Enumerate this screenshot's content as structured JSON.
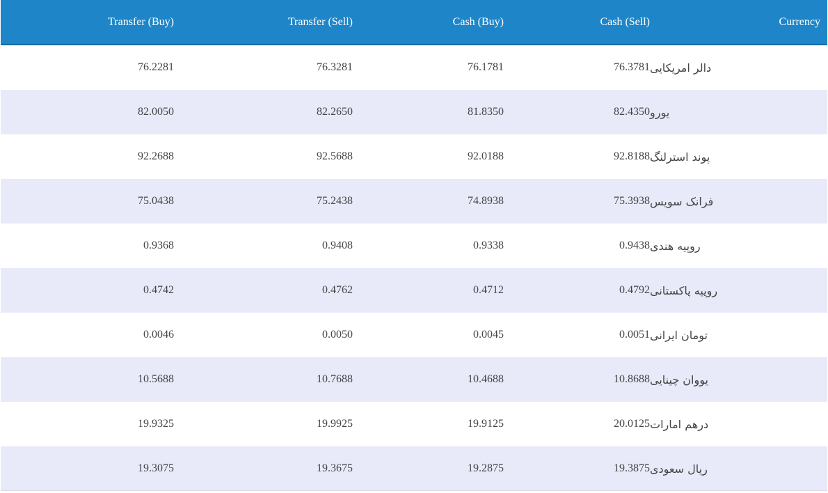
{
  "headers": {
    "transfer_buy": "Transfer (Buy)",
    "transfer_sell": "Transfer (Sell)",
    "cash_buy": "Cash (Buy)",
    "cash_sell": "Cash (Sell)",
    "currency": "Currency"
  },
  "rows": [
    {
      "transfer_buy": "76.2281",
      "transfer_sell": "76.3281",
      "cash_buy": "76.1781",
      "cash_sell": "76.3781",
      "currency": "دالر امریکایی"
    },
    {
      "transfer_buy": "82.0050",
      "transfer_sell": "82.2650",
      "cash_buy": "81.8350",
      "cash_sell": "82.4350",
      "currency": "یورو"
    },
    {
      "transfer_buy": "92.2688",
      "transfer_sell": "92.5688",
      "cash_buy": "92.0188",
      "cash_sell": "92.8188",
      "currency": "پوند استرلنگ"
    },
    {
      "transfer_buy": "75.0438",
      "transfer_sell": "75.2438",
      "cash_buy": "74.8938",
      "cash_sell": "75.3938",
      "currency": "فرانک سویس"
    },
    {
      "transfer_buy": "0.9368",
      "transfer_sell": "0.9408",
      "cash_buy": "0.9338",
      "cash_sell": "0.9438",
      "currency": "روپیه هندی"
    },
    {
      "transfer_buy": "0.4742",
      "transfer_sell": "0.4762",
      "cash_buy": "0.4712",
      "cash_sell": "0.4792",
      "currency": "روپیه پاکستانی"
    },
    {
      "transfer_buy": "0.0046",
      "transfer_sell": "0.0050",
      "cash_buy": "0.0045",
      "cash_sell": "0.0051",
      "currency": "تومان ایرانی"
    },
    {
      "transfer_buy": "10.5688",
      "transfer_sell": "10.7688",
      "cash_buy": "10.4688",
      "cash_sell": "10.8688",
      "currency": "یووان چینایی"
    },
    {
      "transfer_buy": "19.9325",
      "transfer_sell": "19.9925",
      "cash_buy": "19.9125",
      "cash_sell": "20.0125",
      "currency": "درهم امارات"
    },
    {
      "transfer_buy": "19.3075",
      "transfer_sell": "19.3675",
      "cash_buy": "19.2875",
      "cash_sell": "19.3875",
      "currency": "ریال سعودی"
    }
  ],
  "colors": {
    "header_bg": "#1e86c8",
    "header_text": "#ffffff",
    "row_alt_bg": "#e8eaf9",
    "row_bg": "#ffffff",
    "cell_text": "#444444"
  }
}
